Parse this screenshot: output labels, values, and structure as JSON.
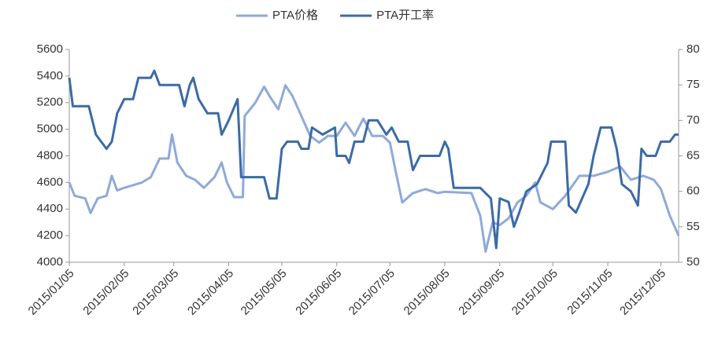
{
  "chart_data": {
    "type": "line",
    "xlim": [
      "2015/01/05",
      "2015/12/15"
    ],
    "xticks": [
      "2015/01/05",
      "2015/02/05",
      "2015/03/05",
      "2015/04/05",
      "2015/05/05",
      "2015/06/05",
      "2015/07/05",
      "2015/08/05",
      "2015/09/05",
      "2015/10/05",
      "2015/11/05",
      "2015/12/05"
    ],
    "ylim": [
      4000,
      5600
    ],
    "yticks": [
      4000,
      4200,
      4400,
      4600,
      4800,
      5000,
      5200,
      5400,
      5600
    ],
    "y2lim": [
      50,
      80
    ],
    "y2ticks": [
      50,
      55,
      60,
      65,
      70,
      75,
      80
    ],
    "series": [
      {
        "name": "PTA价格",
        "color": "#8eaad8",
        "x": [
          "2015/01/05",
          "2015/01/08",
          "2015/01/14",
          "2015/01/17",
          "2015/01/21",
          "2015/01/26",
          "2015/01/29",
          "2015/02/01",
          "2015/02/05",
          "2015/02/15",
          "2015/02/20",
          "2015/02/25",
          "2015/03/02",
          "2015/03/04",
          "2015/03/07",
          "2015/03/12",
          "2015/03/17",
          "2015/03/22",
          "2015/03/28",
          "2015/04/01",
          "2015/04/04",
          "2015/04/08",
          "2015/04/13",
          "2015/04/14",
          "2015/04/20",
          "2015/04/25",
          "2015/04/28",
          "2015/05/03",
          "2015/05/07",
          "2015/05/11",
          "2015/05/16",
          "2015/05/21",
          "2015/05/26",
          "2015/05/31",
          "2015/06/05",
          "2015/06/10",
          "2015/06/15",
          "2015/06/20",
          "2015/06/25",
          "2015/07/01",
          "2015/07/05",
          "2015/07/08",
          "2015/07/12",
          "2015/07/18",
          "2015/07/25",
          "2015/08/01",
          "2015/08/05",
          "2015/08/20",
          "2015/08/25",
          "2015/08/28",
          "2015/09/01",
          "2015/09/05",
          "2015/09/10",
          "2015/09/15",
          "2015/09/20",
          "2015/09/25",
          "2015/09/28",
          "2015/10/05",
          "2015/10/12",
          "2015/10/20",
          "2015/10/28",
          "2015/11/05",
          "2015/11/12",
          "2015/11/18",
          "2015/11/25",
          "2015/12/01",
          "2015/12/05",
          "2015/12/10",
          "2015/12/15"
        ],
        "values": [
          4600,
          4500,
          4480,
          4370,
          4480,
          4500,
          4650,
          4540,
          4560,
          4600,
          4640,
          4780,
          4780,
          4960,
          4750,
          4650,
          4620,
          4560,
          4640,
          4750,
          4600,
          4490,
          4490,
          5100,
          5200,
          5320,
          5250,
          5150,
          5330,
          5250,
          5100,
          4950,
          4900,
          4950,
          4950,
          5050,
          4950,
          5080,
          4950,
          4950,
          4900,
          4700,
          4450,
          4520,
          4550,
          4520,
          4530,
          4520,
          4350,
          4080,
          4300,
          4280,
          4330,
          4450,
          4500,
          4600,
          4450,
          4400,
          4500,
          4650,
          4650,
          4680,
          4720,
          4620,
          4650,
          4620,
          4550,
          4350,
          4200
        ]
      },
      {
        "name": "PTA开工率",
        "color": "#3c6ba6",
        "axis": "y2",
        "x": [
          "2015/01/05",
          "2015/01/07",
          "2015/01/16",
          "2015/01/20",
          "2015/01/26",
          "2015/01/29",
          "2015/02/01",
          "2015/02/05",
          "2015/02/10",
          "2015/02/13",
          "2015/02/20",
          "2015/02/22",
          "2015/02/25",
          "2015/03/08",
          "2015/03/11",
          "2015/03/14",
          "2015/03/16",
          "2015/03/19",
          "2015/03/24",
          "2015/03/30",
          "2015/04/01",
          "2015/04/05",
          "2015/04/10",
          "2015/04/12",
          "2015/04/25",
          "2015/04/28",
          "2015/05/02",
          "2015/05/05",
          "2015/05/08",
          "2015/05/14",
          "2015/05/16",
          "2015/05/20",
          "2015/05/22",
          "2015/05/28",
          "2015/06/04",
          "2015/06/05",
          "2015/06/10",
          "2015/06/12",
          "2015/06/15",
          "2015/06/20",
          "2015/06/23",
          "2015/06/28",
          "2015/07/03",
          "2015/07/06",
          "2015/07/10",
          "2015/07/15",
          "2015/07/18",
          "2015/07/22",
          "2015/08/02",
          "2015/08/05",
          "2015/08/07",
          "2015/08/10",
          "2015/08/25",
          "2015/08/31",
          "2015/09/03",
          "2015/09/05",
          "2015/09/10",
          "2015/09/13",
          "2015/09/16",
          "2015/09/20",
          "2015/09/26",
          "2015/10/02",
          "2015/10/04",
          "2015/10/12",
          "2015/10/14",
          "2015/10/18",
          "2015/10/25",
          "2015/10/28",
          "2015/11/01",
          "2015/11/07",
          "2015/11/10",
          "2015/11/13",
          "2015/11/18",
          "2015/11/22",
          "2015/11/24",
          "2015/11/27",
          "2015/12/02",
          "2015/12/05",
          "2015/12/10",
          "2015/12/13",
          "2015/12/15"
        ],
        "values": [
          76,
          72,
          72,
          68,
          66,
          67,
          71,
          73,
          73,
          76,
          76,
          77,
          75,
          75,
          72,
          75,
          76,
          73,
          71,
          71,
          68,
          70,
          73,
          62,
          62,
          59,
          59,
          66,
          67,
          67,
          66,
          66,
          69,
          68,
          69,
          65,
          65,
          64,
          67,
          67,
          70,
          70,
          68,
          69,
          67,
          67,
          63,
          65,
          65,
          67,
          66,
          60.5,
          60.5,
          59,
          52,
          59,
          58.5,
          55,
          57,
          60,
          61,
          64,
          67,
          67,
          58,
          57,
          61,
          65,
          69,
          69,
          66,
          61,
          60,
          58,
          66,
          65,
          65,
          67,
          67,
          68,
          68
        ]
      }
    ]
  }
}
